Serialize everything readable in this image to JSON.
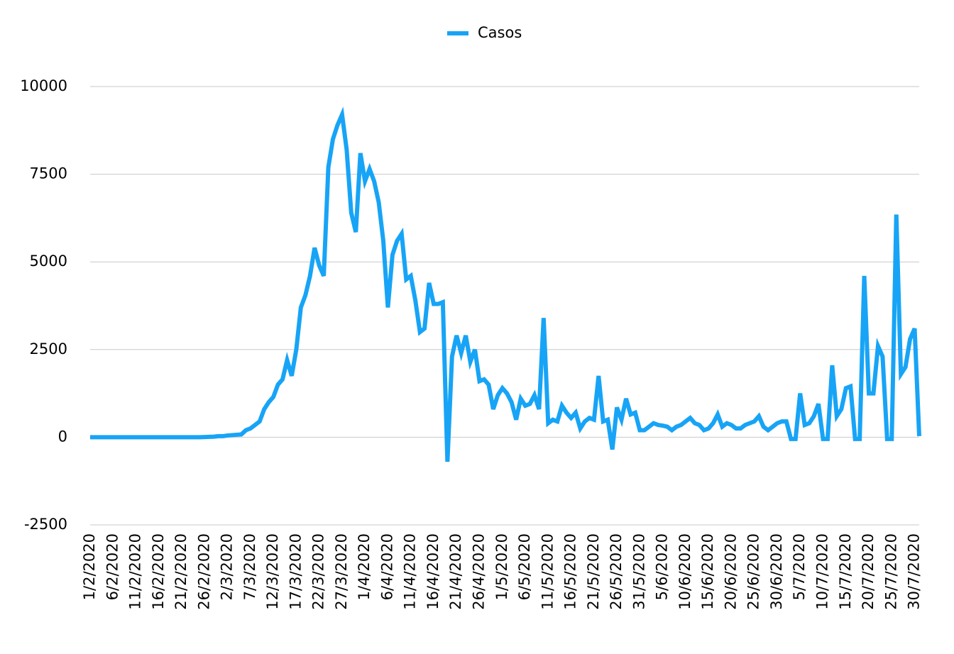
{
  "chart_data": {
    "type": "line",
    "categories": [
      "1/2/2020",
      null,
      null,
      null,
      null,
      "6/2/2020",
      null,
      null,
      null,
      null,
      "11/2/2020",
      null,
      null,
      null,
      null,
      "16/2/2020",
      null,
      null,
      null,
      null,
      "21/2/2020",
      null,
      null,
      null,
      null,
      "26/2/2020",
      null,
      null,
      null,
      null,
      "2/3/2020",
      null,
      null,
      null,
      null,
      "7/3/2020",
      null,
      null,
      null,
      null,
      "12/3/2020",
      null,
      null,
      null,
      null,
      "17/3/2020",
      null,
      null,
      null,
      null,
      "22/3/2020",
      null,
      null,
      null,
      null,
      "27/3/2020",
      null,
      null,
      null,
      null,
      "1/4/2020",
      null,
      null,
      null,
      null,
      "6/4/2020",
      null,
      null,
      null,
      null,
      "11/4/2020",
      null,
      null,
      null,
      null,
      "16/4/2020",
      null,
      null,
      null,
      null,
      "21/4/2020",
      null,
      null,
      null,
      null,
      "26/4/2020",
      null,
      null,
      null,
      null,
      "1/5/2020",
      null,
      null,
      null,
      null,
      "6/5/2020",
      null,
      null,
      null,
      null,
      "11/5/2020",
      null,
      null,
      null,
      null,
      "16/5/2020",
      null,
      null,
      null,
      null,
      "21/5/2020",
      null,
      null,
      null,
      null,
      "26/5/2020",
      null,
      null,
      null,
      null,
      "31/5/2020",
      null,
      null,
      null,
      null,
      "5/6/2020",
      null,
      null,
      null,
      null,
      "10/6/2020",
      null,
      null,
      null,
      null,
      "15/6/2020",
      null,
      null,
      null,
      null,
      "20/6/2020",
      null,
      null,
      null,
      null,
      "25/6/2020",
      null,
      null,
      null,
      null,
      "30/6/2020",
      null,
      null,
      null,
      null,
      "5/7/2020",
      null,
      null,
      null,
      null,
      "10/7/2020",
      null,
      null,
      null,
      null,
      "15/7/2020",
      null,
      null,
      null,
      null,
      "20/7/2020",
      null,
      null,
      null,
      null,
      "25/7/2020",
      null,
      null,
      null,
      null,
      "30/7/2020",
      null
    ],
    "series": [
      {
        "name": "Casos",
        "color": "#17a4f6",
        "values": [
          0,
          0,
          0,
          0,
          0,
          0,
          0,
          0,
          0,
          0,
          0,
          0,
          0,
          0,
          0,
          0,
          0,
          0,
          0,
          0,
          0,
          0,
          0,
          0,
          0,
          5,
          10,
          15,
          30,
          30,
          50,
          60,
          70,
          80,
          200,
          250,
          350,
          450,
          800,
          1000,
          1150,
          1500,
          1650,
          2200,
          1750,
          2500,
          3700,
          4050,
          4600,
          5400,
          4900,
          4600,
          7700,
          8500,
          8900,
          9200,
          8200,
          6400,
          5850,
          8100,
          7300,
          7650,
          7300,
          6700,
          5600,
          3700,
          5200,
          5600,
          5800,
          4500,
          4600,
          3900,
          3000,
          3100,
          4400,
          3800,
          3800,
          3850,
          -700,
          2300,
          2900,
          2400,
          2900,
          2150,
          2500,
          1600,
          1650,
          1500,
          800,
          1200,
          1400,
          1250,
          1000,
          500,
          1100,
          900,
          950,
          1200,
          800,
          3400,
          400,
          500,
          450,
          900,
          700,
          550,
          700,
          250,
          450,
          550,
          500,
          1750,
          450,
          500,
          -350,
          850,
          500,
          1100,
          650,
          700,
          200,
          200,
          300,
          400,
          350,
          330,
          300,
          200,
          300,
          350,
          450,
          550,
          400,
          350,
          200,
          250,
          400,
          650,
          300,
          400,
          350,
          250,
          250,
          350,
          400,
          450,
          600,
          300,
          200,
          300,
          400,
          450,
          450,
          -50,
          -50,
          1250,
          350,
          400,
          600,
          950,
          -50,
          -50,
          2050,
          600,
          800,
          1400,
          1450,
          -50,
          -50,
          4600,
          1250,
          1250,
          2600,
          2300,
          -50,
          -50,
          6350,
          1800,
          2000,
          2800,
          3100,
          30
        ]
      }
    ],
    "ylim": [
      -2500,
      10000
    ],
    "yticks": [
      -2500,
      0,
      2500,
      5000,
      7500,
      10000
    ],
    "grid": true,
    "legend": "top"
  }
}
